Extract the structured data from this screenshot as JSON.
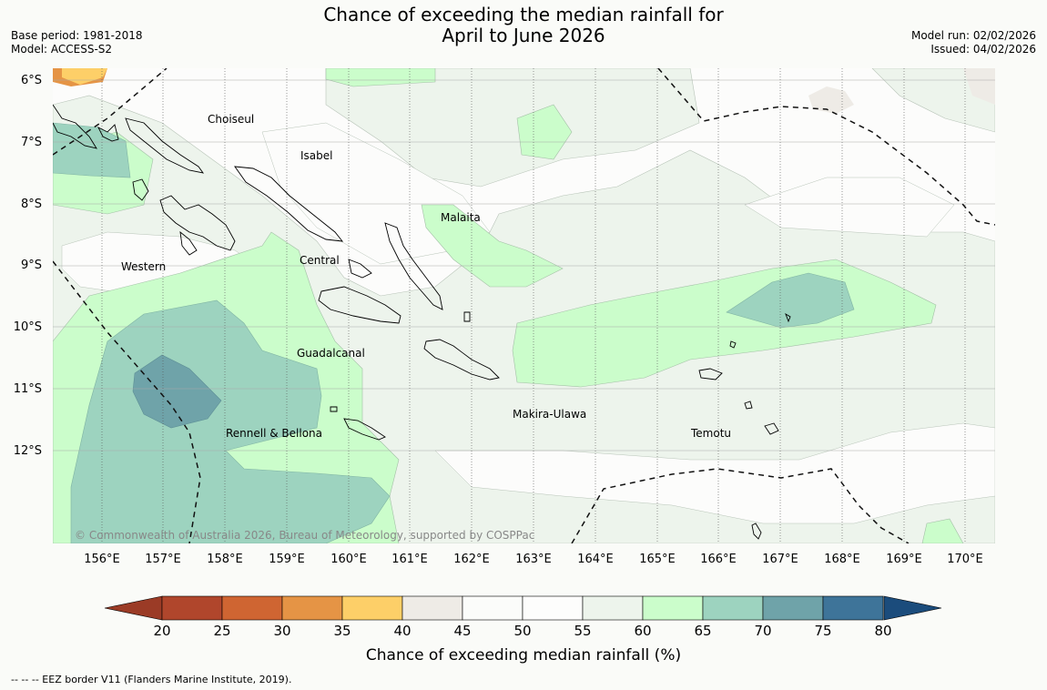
{
  "header": {
    "title_line1": "Chance of exceeding the median rainfall for",
    "title_line2": "April to June 2026",
    "base_period": "Base period: 1981-2018",
    "model": "Model: ACCESS-S2",
    "model_run": "Model run: 02/02/2026",
    "issued": "Issued: 04/02/2026"
  },
  "map": {
    "lat_labels": [
      "6°S",
      "7°S",
      "8°S",
      "9°S",
      "10°S",
      "11°S",
      "12°S"
    ],
    "lon_labels": [
      "156°E",
      "157°E",
      "158°E",
      "159°E",
      "160°E",
      "161°E",
      "162°E",
      "163°E",
      "164°E",
      "165°E",
      "166°E",
      "167°E",
      "168°E",
      "169°E",
      "170°E"
    ],
    "places": [
      "Choiseul",
      "Isabel",
      "Malaita",
      "Western",
      "Central",
      "Guadalcanal",
      "Makira-Ulawa",
      "Rennell & Bellona",
      "Temotu"
    ],
    "copyright": "© Commonwealth of Australia 2026, Bureau of Meteorology, supported by COSPPac"
  },
  "colorbar": {
    "ticks": [
      "20",
      "25",
      "30",
      "35",
      "40",
      "45",
      "50",
      "55",
      "60",
      "65",
      "70",
      "75",
      "80"
    ],
    "colors": [
      "#b0462c",
      "#cf6532",
      "#e59445",
      "#fdcf68",
      "#eeebe6",
      "#fbfcfa",
      "#fdfdfc",
      "#edf4ec",
      "#cbfdcb",
      "#9dd3bf",
      "#6fa3a9",
      "#3e7499"
    ],
    "under_color": "#9b3b26",
    "over_color": "#1b4c7c",
    "label": "Chance of exceeding median rainfall (%)"
  },
  "footer": {
    "eez_note": "--  --  -- EEZ border V11 (Flanders Marine Institute, 2019)."
  }
}
